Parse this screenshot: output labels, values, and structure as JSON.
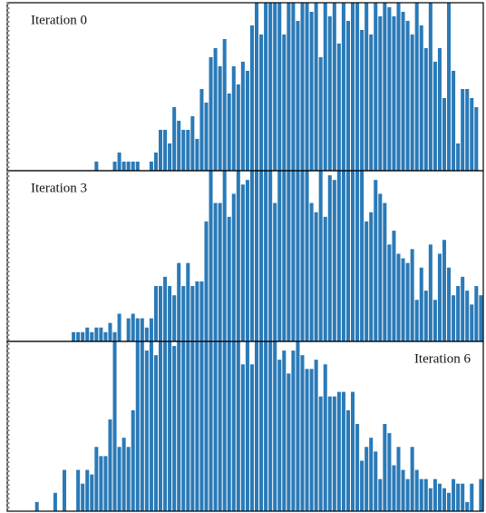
{
  "chart_data": [
    {
      "type": "bar",
      "title": "Iteration 0",
      "title_position": "upper left",
      "color": "#2a7ab8",
      "ylim": [
        0,
        37
      ],
      "values": [
        0,
        0,
        0,
        0,
        0,
        0,
        0,
        0,
        0,
        0,
        0,
        0,
        0,
        0,
        0,
        0,
        0,
        0,
        0,
        2,
        0,
        0,
        0,
        2,
        4,
        2,
        2,
        2,
        2,
        0,
        0,
        2,
        4,
        9,
        9,
        6,
        14,
        11,
        9,
        9,
        12,
        7,
        18,
        15,
        25,
        27,
        23,
        29,
        17,
        23,
        19,
        24,
        22,
        32,
        37,
        30,
        37,
        37,
        37,
        37,
        30,
        37,
        37,
        33,
        37,
        37,
        35,
        37,
        25,
        37,
        34,
        37,
        28,
        37,
        33,
        37,
        37,
        31,
        37,
        30,
        37,
        34,
        37,
        36,
        34,
        37,
        35,
        33,
        30,
        37,
        32,
        27,
        37,
        24,
        27,
        16,
        37,
        22,
        6,
        18,
        18,
        16,
        14,
        0
      ]
    },
    {
      "type": "bar",
      "title": "Iteration 3",
      "title_position": "upper left",
      "color": "#2a7ab8",
      "ylim": [
        0,
        37
      ],
      "values": [
        0,
        0,
        0,
        0,
        0,
        0,
        0,
        0,
        0,
        0,
        0,
        0,
        0,
        0,
        2,
        2,
        2,
        3,
        2,
        3,
        3,
        2,
        4,
        2,
        6,
        0,
        5,
        6,
        5,
        5,
        3,
        5,
        12,
        12,
        14,
        12,
        10,
        17,
        12,
        17,
        12,
        13,
        13,
        26,
        37,
        30,
        30,
        37,
        27,
        32,
        37,
        34,
        35,
        37,
        37,
        37,
        37,
        37,
        30,
        37,
        37,
        37,
        37,
        37,
        37,
        37,
        30,
        28,
        37,
        27,
        36,
        35,
        37,
        37,
        37,
        37,
        37,
        37,
        26,
        28,
        35,
        32,
        30,
        21,
        24,
        19,
        18,
        17,
        20,
        9,
        16,
        11,
        21,
        9,
        19,
        22,
        16,
        10,
        12,
        14,
        11,
        8,
        12,
        10
      ]
    },
    {
      "type": "bar",
      "title": "Iteration 6",
      "title_position": "upper right",
      "color": "#2a7ab8",
      "ylim": [
        0,
        37
      ],
      "values": [
        0,
        0,
        0,
        0,
        0,
        0,
        2,
        0,
        0,
        0,
        4,
        0,
        9,
        0,
        0,
        9,
        6,
        9,
        8,
        14,
        12,
        12,
        20,
        37,
        14,
        16,
        14,
        22,
        37,
        37,
        35,
        37,
        34,
        37,
        37,
        37,
        36,
        37,
        37,
        37,
        37,
        37,
        37,
        37,
        37,
        37,
        37,
        37,
        37,
        37,
        37,
        32,
        37,
        32,
        37,
        37,
        37,
        37,
        37,
        33,
        35,
        30,
        35,
        37,
        34,
        31,
        31,
        33,
        25,
        32,
        25,
        25,
        26,
        26,
        22,
        26,
        19,
        11,
        14,
        16,
        13,
        7,
        19,
        17,
        10,
        14,
        9,
        7,
        14,
        9,
        7,
        7,
        5,
        7,
        6,
        5,
        4,
        7,
        6,
        6,
        2,
        6,
        0,
        7
      ]
    }
  ]
}
